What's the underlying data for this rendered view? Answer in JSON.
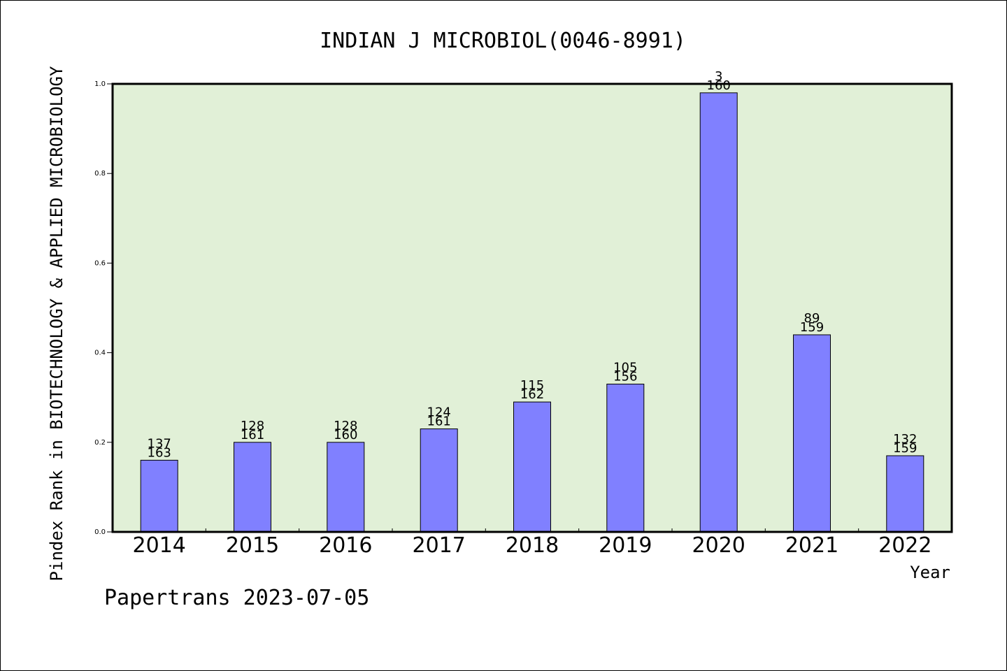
{
  "chart_data": {
    "type": "bar",
    "title": "INDIAN J MICROBIOL(0046-8991)",
    "xlabel": "Year",
    "ylabel": "Pindex Rank in BIOTECHNOLOGY & APPLIED MICROBIOLOGY",
    "categories": [
      "2014",
      "2015",
      "2016",
      "2017",
      "2018",
      "2019",
      "2020",
      "2021",
      "2022"
    ],
    "values": [
      0.16,
      0.2,
      0.2,
      0.23,
      0.29,
      0.33,
      0.98,
      0.44,
      0.17
    ],
    "rank_labels": [
      "137",
      "128",
      "128",
      "124",
      "115",
      "105",
      "3",
      "89",
      "132"
    ],
    "total_labels": [
      "163",
      "161",
      "160",
      "161",
      "162",
      "156",
      "160",
      "159",
      "159"
    ],
    "ylim": [
      0,
      1.0
    ],
    "yticks": [
      "0.0",
      "0.2",
      "0.4",
      "0.6",
      "0.8",
      "1.0"
    ],
    "grid": false,
    "bar_color": "#8080ff",
    "plot_background": "#e1f0d7"
  },
  "footer": {
    "credit": "Papertrans 2023-07-05"
  }
}
